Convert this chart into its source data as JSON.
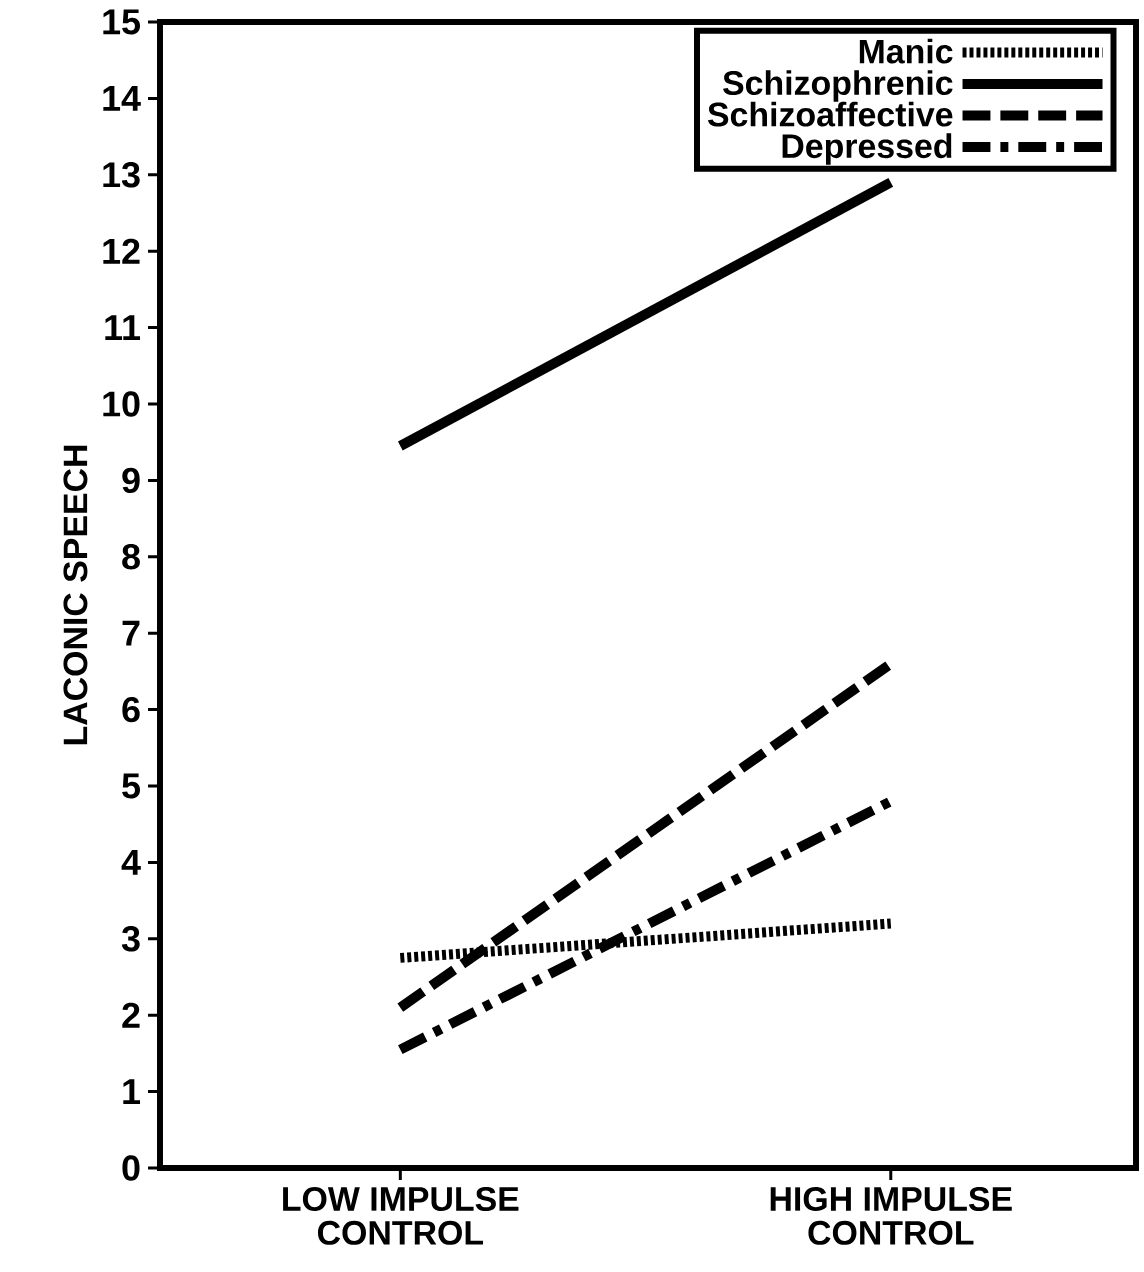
{
  "chart_data": {
    "type": "line",
    "ylabel": "LACONIC SPEECH",
    "categories": [
      "LOW IMPULSE\nCONTROL",
      "HIGH IMPULSE\nCONTROL"
    ],
    "ylim": [
      0,
      15
    ],
    "yticks": [
      0,
      1,
      2,
      3,
      4,
      5,
      6,
      7,
      8,
      9,
      10,
      11,
      12,
      13,
      14,
      15
    ],
    "grid": false,
    "legend": "top right",
    "marker": "none",
    "series": [
      {
        "name": "Manic",
        "color": "#000000",
        "line_style": "dotted",
        "values": [
          2.75,
          3.2
        ]
      },
      {
        "name": "Schizophrenic",
        "color": "#000000",
        "line_style": "solid",
        "values": [
          9.45,
          12.9
        ]
      },
      {
        "name": "Schizoaffective",
        "color": "#000000",
        "line_style": "dashed",
        "values": [
          2.1,
          6.6
        ]
      },
      {
        "name": "Depressed",
        "color": "#000000",
        "line_style": "dashdot",
        "values": [
          1.55,
          4.8
        ]
      }
    ]
  }
}
